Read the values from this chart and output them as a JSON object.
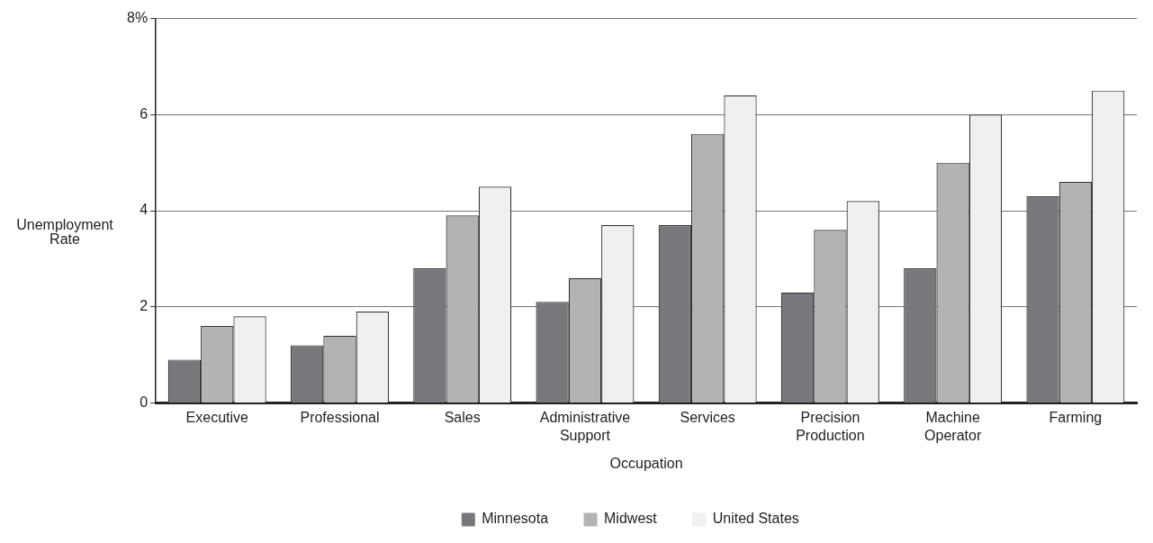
{
  "chart_data": {
    "type": "bar",
    "xlabel": "Occupation",
    "ylabel": "Unemployment Rate",
    "categories": [
      "Executive",
      "Professional",
      "Sales",
      "Administrative Support",
      "Services",
      "Precision Production",
      "Machine Operator",
      "Farming"
    ],
    "series": [
      {
        "name": "Minnesota",
        "color": "#77787c",
        "values": [
          0.9,
          1.2,
          2.8,
          2.1,
          3.7,
          2.3,
          2.8,
          4.3
        ]
      },
      {
        "name": "Midwest",
        "color": "#b2b3b5",
        "values": [
          1.6,
          1.4,
          3.9,
          2.6,
          5.6,
          3.6,
          5.0,
          4.6
        ]
      },
      {
        "name": "United States",
        "color": "#f0f0f0",
        "values": [
          1.8,
          1.9,
          4.5,
          3.7,
          6.4,
          4.2,
          6.0,
          6.5
        ]
      }
    ],
    "ylim": [
      0,
      8
    ],
    "yticks": [
      0,
      2,
      4,
      6,
      {
        "value": 8,
        "label": "8%"
      }
    ],
    "grid": "y",
    "legend": "bottom"
  }
}
